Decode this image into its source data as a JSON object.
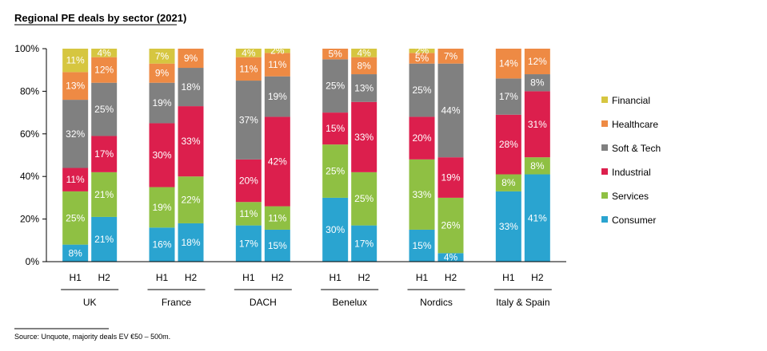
{
  "chart_data": {
    "type": "bar",
    "stacked": true,
    "title": "Regional PE deals by sector (2021)",
    "ylim": [
      0,
      100
    ],
    "yticks": [
      "0%",
      "20%",
      "40%",
      "60%",
      "80%",
      "100%"
    ],
    "groups": [
      {
        "name": "UK",
        "bars": [
          "H1",
          "H2"
        ]
      },
      {
        "name": "France",
        "bars": [
          "H1",
          "H2"
        ]
      },
      {
        "name": "DACH",
        "bars": [
          "H1",
          "H2"
        ]
      },
      {
        "name": "Benelux",
        "bars": [
          "H1",
          "H2"
        ]
      },
      {
        "name": "Nordics",
        "bars": [
          "H1",
          "H2"
        ]
      },
      {
        "name": "Italy & Spain",
        "bars": [
          "H1",
          "H2"
        ]
      }
    ],
    "series": [
      {
        "name": "Consumer",
        "color": "#2aa4d0",
        "values": [
          8,
          21,
          16,
          18,
          17,
          15,
          30,
          17,
          15,
          4,
          33,
          41
        ],
        "labels": [
          "8%",
          "21%",
          "16%",
          "18%",
          "17%",
          "15%",
          "30%",
          "17%",
          "15%",
          "4%",
          "33%",
          "41%"
        ]
      },
      {
        "name": "Services",
        "color": "#8fc043",
        "values": [
          25,
          21,
          19,
          22,
          11,
          11,
          25,
          25,
          33,
          26,
          8,
          8
        ],
        "labels": [
          "25%",
          "21%",
          "19%",
          "22%",
          "11%",
          "11%",
          "25%",
          "25%",
          "33%",
          "26%",
          "8%",
          "8%"
        ]
      },
      {
        "name": "Industrial",
        "color": "#dc1f4d",
        "values": [
          11,
          17,
          30,
          33,
          20,
          42,
          15,
          33,
          20,
          19,
          28,
          31
        ],
        "labels": [
          "11%",
          "17%",
          "30%",
          "33%",
          "20%",
          "42%",
          "15%",
          "33%",
          "20%",
          "19%",
          "28%",
          "31%"
        ]
      },
      {
        "name": "Soft & Tech",
        "color": "#808080",
        "values": [
          32,
          25,
          19,
          18,
          37,
          19,
          25,
          13,
          25,
          44,
          17,
          8
        ],
        "labels": [
          "32%",
          "25%",
          "19%",
          "18%",
          "37%",
          "19%",
          "25%",
          "13%",
          "25%",
          "44%",
          "17%",
          "8%"
        ]
      },
      {
        "name": "Healthcare",
        "color": "#ee8a44",
        "values": [
          13,
          12,
          9,
          9,
          11,
          11,
          5,
          8,
          5,
          7,
          14,
          12
        ],
        "labels": [
          "13%",
          "12%",
          "9%",
          "9%",
          "11%",
          "11%",
          "5%",
          "8%",
          "5%",
          "7%",
          "14%",
          "12%"
        ]
      },
      {
        "name": "Financial",
        "color": "#d6c640",
        "values": [
          11,
          4,
          7,
          0,
          4,
          2,
          0,
          4,
          2,
          0,
          0,
          0
        ],
        "labels": [
          "11%",
          "4%",
          "7%",
          "",
          "4%",
          "2%",
          "",
          "4%",
          "2%",
          "",
          "",
          ""
        ]
      }
    ],
    "legend_order": [
      "Financial",
      "Healthcare",
      "Soft & Tech",
      "Industrial",
      "Services",
      "Consumer"
    ],
    "legend_position": "right",
    "source": "Source:  Unquote, majority deals EV €50 – 500m."
  }
}
